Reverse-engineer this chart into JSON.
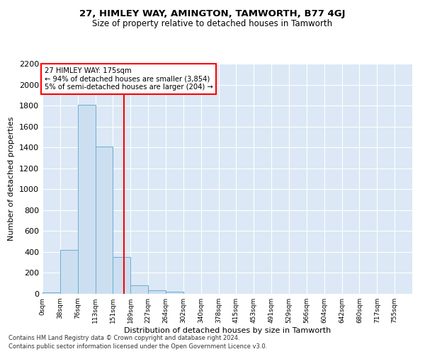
{
  "title": "27, HIMLEY WAY, AMINGTON, TAMWORTH, B77 4GJ",
  "subtitle": "Size of property relative to detached houses in Tamworth",
  "xlabel": "Distribution of detached houses by size in Tamworth",
  "ylabel": "Number of detached properties",
  "bar_labels": [
    "0sqm",
    "38sqm",
    "76sqm",
    "113sqm",
    "151sqm",
    "189sqm",
    "227sqm",
    "264sqm",
    "302sqm",
    "340sqm",
    "378sqm",
    "415sqm",
    "453sqm",
    "491sqm",
    "529sqm",
    "566sqm",
    "604sqm",
    "642sqm",
    "680sqm",
    "717sqm",
    "755sqm"
  ],
  "bar_values": [
    15,
    420,
    1810,
    1405,
    350,
    80,
    35,
    20,
    0,
    0,
    0,
    0,
    0,
    0,
    0,
    0,
    0,
    0,
    0,
    0,
    0
  ],
  "bar_color": "#ccdff0",
  "bar_edgecolor": "#6aaed6",
  "ylim": [
    0,
    2200
  ],
  "yticks": [
    0,
    200,
    400,
    600,
    800,
    1000,
    1200,
    1400,
    1600,
    1800,
    2000,
    2200
  ],
  "annotation_line1": "27 HIMLEY WAY: 175sqm",
  "annotation_line2": "← 94% of detached houses are smaller (3,854)",
  "annotation_line3": "5% of semi-detached houses are larger (204) →",
  "vline_x": 175,
  "bin_width": 37.74,
  "num_bins": 21,
  "footer_line1": "Contains HM Land Registry data © Crown copyright and database right 2024.",
  "footer_line2": "Contains public sector information licensed under the Open Government Licence v3.0.",
  "plot_background": "#dce8f5",
  "grid_color": "#ffffff"
}
